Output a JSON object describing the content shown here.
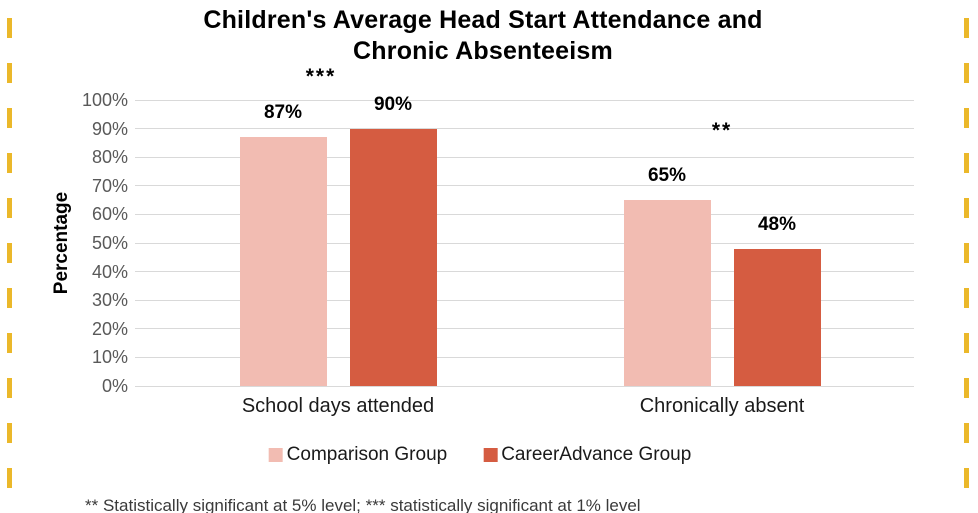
{
  "chart_data": {
    "type": "bar",
    "title": "Children's Average Head Start Attendance and Chronic Absenteeism",
    "title_lines": [
      "Children's Average Head Start Attendance and",
      "Chronic Absenteeism"
    ],
    "ylabel": "Percentage",
    "ylim": [
      0,
      100
    ],
    "yticks": [
      "0%",
      "10%",
      "20%",
      "30%",
      "40%",
      "50%",
      "60%",
      "70%",
      "80%",
      "90%",
      "100%"
    ],
    "grid": true,
    "legend_position": "bottom",
    "categories": [
      "School days attended",
      "Chronically absent"
    ],
    "series": [
      {
        "name": "Comparison Group",
        "color": "#F2BCB2",
        "values": [
          87,
          65
        ],
        "data_labels": [
          "87%",
          "65%"
        ]
      },
      {
        "name": "CareerAdvance Group",
        "color": "#D55C41",
        "values": [
          90,
          48
        ],
        "data_labels": [
          "90%",
          "48%"
        ]
      }
    ],
    "significance_markers": [
      "***",
      "**"
    ]
  },
  "footnote": "** Statistically significant at 5% level; *** statistically significant at 1% level",
  "colors": {
    "comparison_group": "#F2BCB2",
    "careeradvance_group": "#D55C41",
    "border_dash": "#EBB82A",
    "gridline": "#D9D9D9",
    "tick_label": "#595959"
  }
}
